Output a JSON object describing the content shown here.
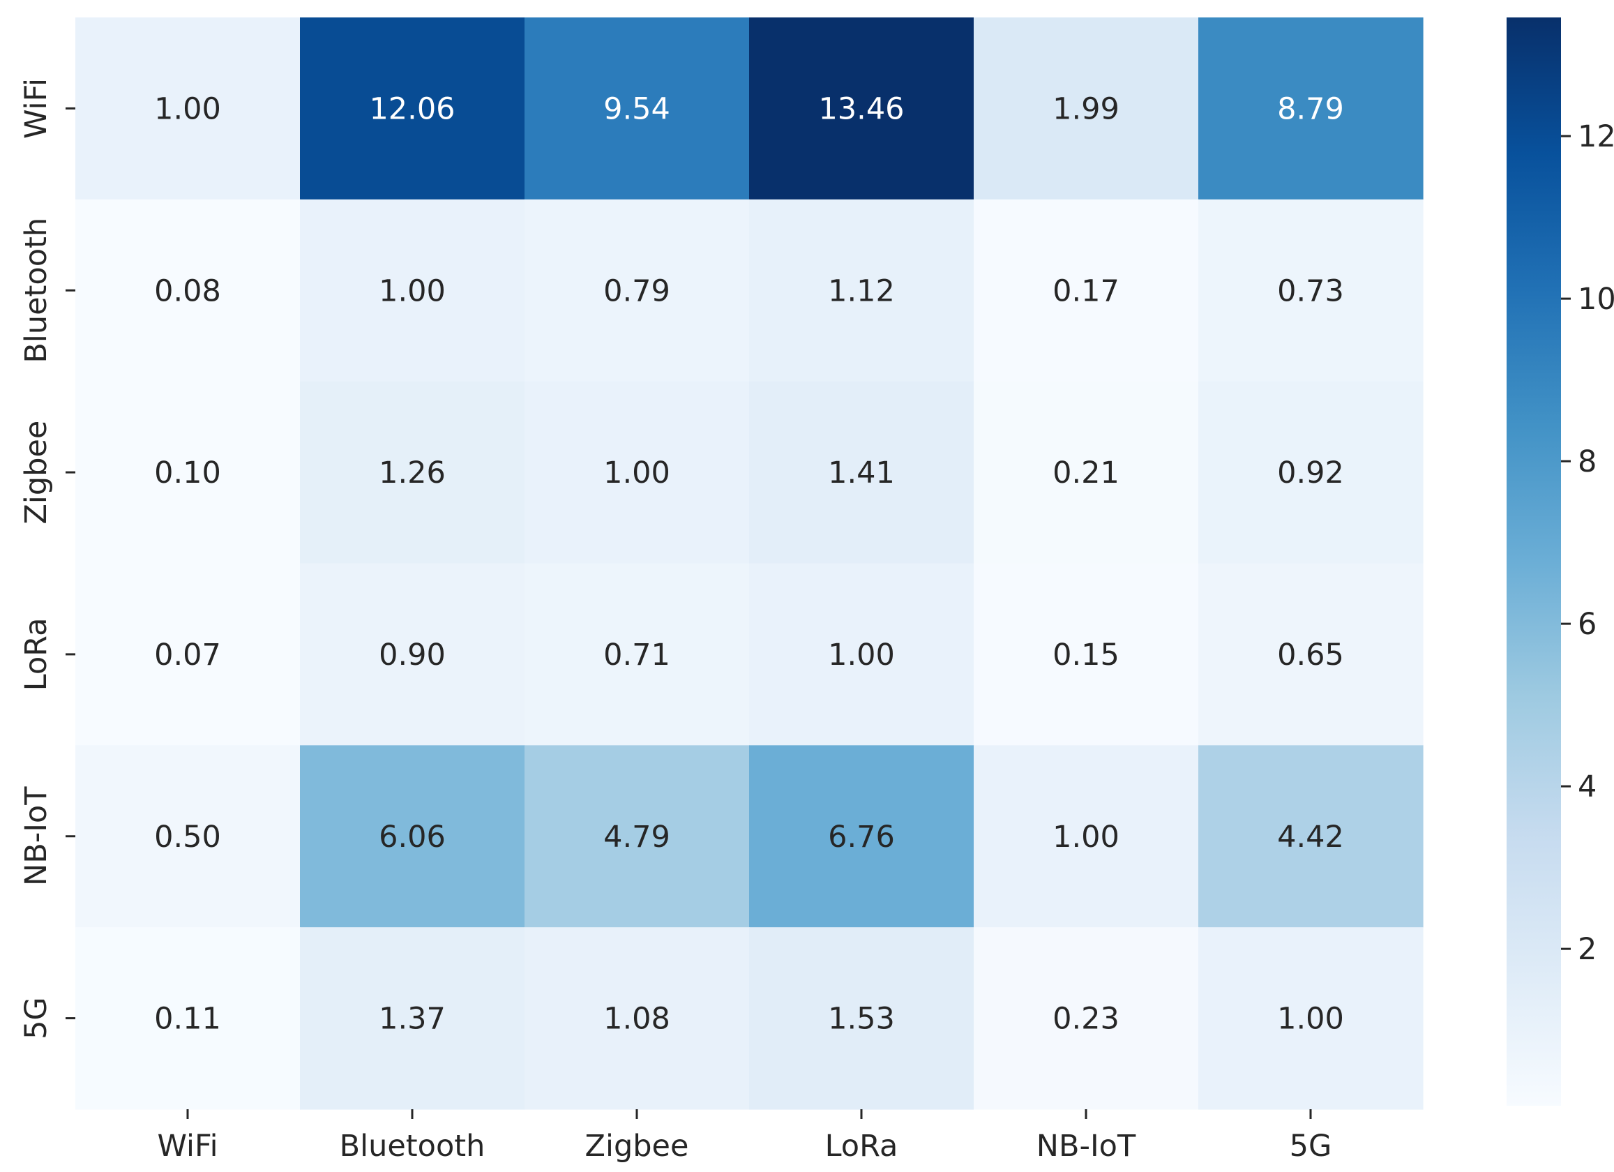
{
  "chart_data": {
    "type": "heatmap",
    "title": "",
    "xlabel": "",
    "ylabel": "",
    "x_categories": [
      "WiFi",
      "Bluetooth",
      "Zigbee",
      "LoRa",
      "NB-IoT",
      "5G"
    ],
    "y_categories": [
      "WiFi",
      "Bluetooth",
      "Zigbee",
      "LoRa",
      "NB-IoT",
      "5G"
    ],
    "values": [
      [
        1.0,
        12.06,
        9.54,
        13.46,
        1.99,
        8.79
      ],
      [
        0.08,
        1.0,
        0.79,
        1.12,
        0.17,
        0.73
      ],
      [
        0.1,
        1.26,
        1.0,
        1.41,
        0.21,
        0.92
      ],
      [
        0.07,
        0.9,
        0.71,
        1.0,
        0.15,
        0.65
      ],
      [
        0.5,
        6.06,
        4.79,
        6.76,
        1.0,
        4.42
      ],
      [
        0.11,
        1.37,
        1.08,
        1.53,
        0.23,
        1.0
      ]
    ],
    "value_format": "0.00",
    "colormap": "Blues",
    "colorbar": {
      "range": [
        0.07,
        13.46
      ],
      "ticks": [
        2,
        4,
        6,
        8,
        10,
        12
      ],
      "tick_labels": [
        "2",
        "4",
        "6",
        "8",
        "10",
        "12"
      ]
    },
    "colors": {
      "low": "#f7fbff",
      "high": "#08306b",
      "text_dark": "#262626",
      "text_light": "#ffffff"
    }
  }
}
